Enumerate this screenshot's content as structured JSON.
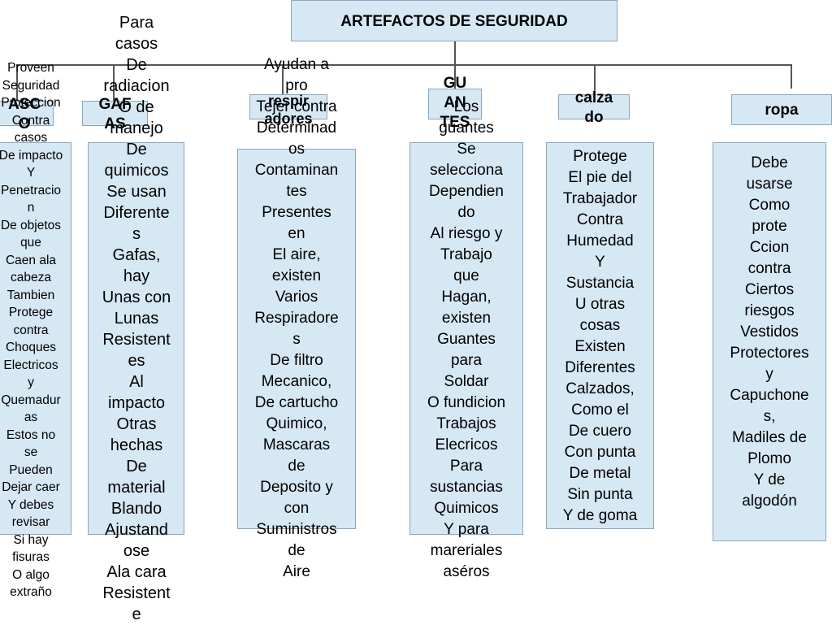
{
  "title": "ARTEFACTOS DE SEGURIDAD",
  "categories": [
    {
      "label": "ASC\nO",
      "text": "Proveen\nSeguridad\nProteccion\nContra\ncasos\nDe impacto\nY\nPenetracio\nn\nDe objetos\nque\nCaen ala\ncabeza\nTambien\nProtege\ncontra\nChoques\nElectricos\ny\nQuemadur\nas\nEstos no\nse\nPueden\nDejar caer\nY  debes\nrevisar\nSi hay\nfisuras\nO algo\nextraño"
    },
    {
      "label": "GAF\nAS",
      "text": "Para\ncasos\nDe\nradiacion\nO de\nmanejo\nDe\nquimicos\nSe usan\nDiferente\ns\nGafas,\nhay\nUnas con\nLunas\nResistent\nes\nAl\nimpacto\nOtras\nhechas\nDe\nmaterial\nBlando\nAjustand\nose\nAla cara\nResistent\ne"
    },
    {
      "label": "respir\nadores",
      "text": "Ayudan a\npro\nTejer contra\nDeterminad\nos\nContaminan\ntes\nPresentes\nen\nEl aire,\nexisten\nVarios\nRespiradore\ns\nDe filtro\nMecanico,\nDe cartucho\nQuimico,\nMascaras\nde\nDeposito y\ncon\nSuministros\nde\nAire"
    },
    {
      "label": "GU\nAN\nTES",
      "text": "Los\nguantes\nSe\nselecciona\nDependien\ndo\nAl riesgo y\nTrabajo\nque\nHagan,\nexisten\nGuantes\npara\nSoldar\nO fundicion\nTrabajos\nElecricos\nPara\nsustancias\nQuimicos\nY para\nmareriales\naséros"
    },
    {
      "label": "calza\ndo",
      "text": "Protege\nEl pie del\nTrabajador\nContra\nHumedad\nY\nSustancia\nU otras\ncosas\nExisten\nDiferentes\nCalzados,\nComo el\nDe cuero\nCon punta\nDe metal\nSin punta\nY de goma"
    },
    {
      "label": "ropa",
      "text": "Debe\nusarse\nComo\nprote\nCcion\ncontra\nCiertos\nriesgos\nVestidos\nProtectores\ny\nCapuchone\ns,\nMadiles de\nPlomo\nY de\nalgodón"
    }
  ]
}
